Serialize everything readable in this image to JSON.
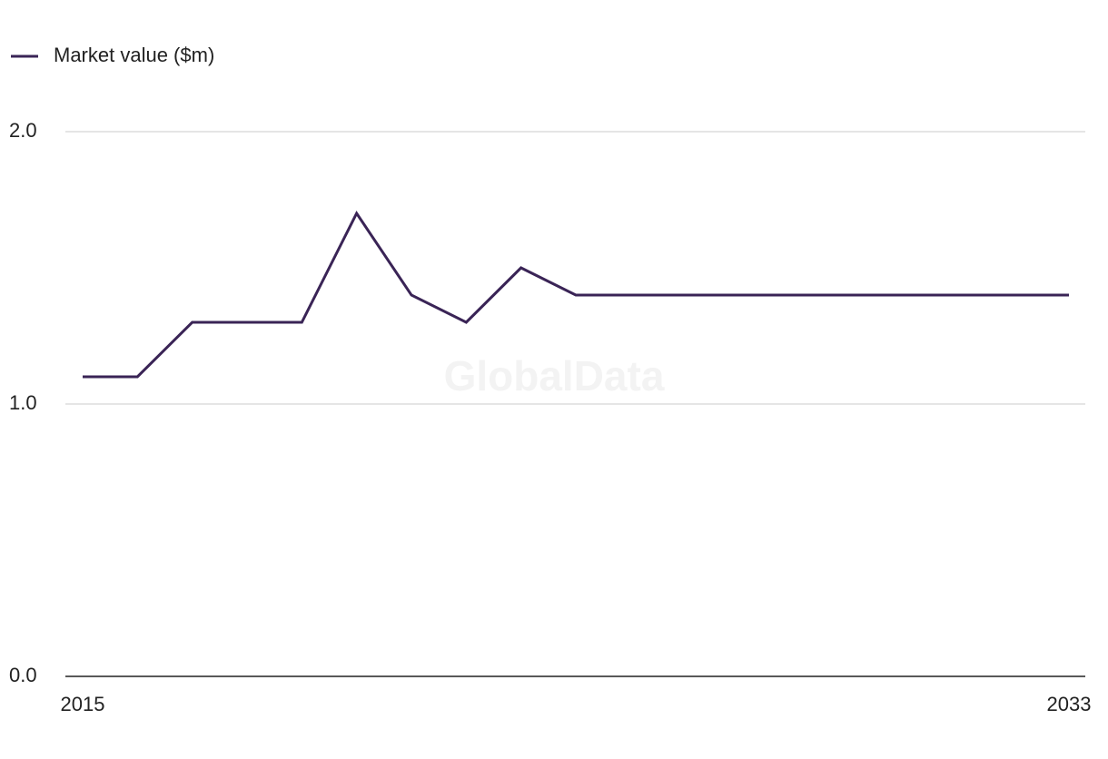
{
  "chart_data": {
    "type": "line",
    "watermark": "GlobalData",
    "x": [
      2015,
      2016,
      2017,
      2018,
      2019,
      2020,
      2021,
      2022,
      2023,
      2024,
      2025,
      2026,
      2027,
      2028,
      2029,
      2030,
      2031,
      2032,
      2033
    ],
    "series": [
      {
        "name": "Market value ($m)",
        "color": "#3a2456",
        "values": [
          1.1,
          1.1,
          1.3,
          1.3,
          1.3,
          1.7,
          1.4,
          1.3,
          1.5,
          1.4,
          1.4,
          1.4,
          1.4,
          1.4,
          1.4,
          1.4,
          1.4,
          1.4,
          1.4
        ]
      }
    ],
    "xlim": [
      2015,
      2033
    ],
    "xticks": [
      2015,
      2033
    ],
    "ylim": [
      0,
      2
    ],
    "yticks": [
      {
        "value": 0,
        "label": "0.0"
      },
      {
        "value": 1,
        "label": "1.0"
      },
      {
        "value": 2,
        "label": "2.0"
      }
    ],
    "grid": true,
    "legend": "top-left"
  }
}
